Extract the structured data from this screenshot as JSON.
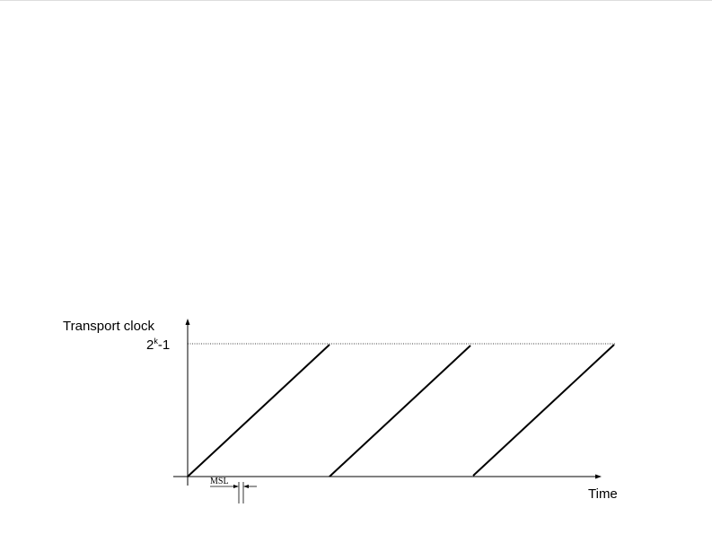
{
  "diagram": {
    "y_axis_label": "Transport clock",
    "max_value_base": "2",
    "max_value_exp": "k",
    "max_value_suffix": "-1",
    "x_axis_label": "Time",
    "gap_label": "MSL",
    "sawtooth_ramps": 3,
    "line_color": "#000000"
  }
}
